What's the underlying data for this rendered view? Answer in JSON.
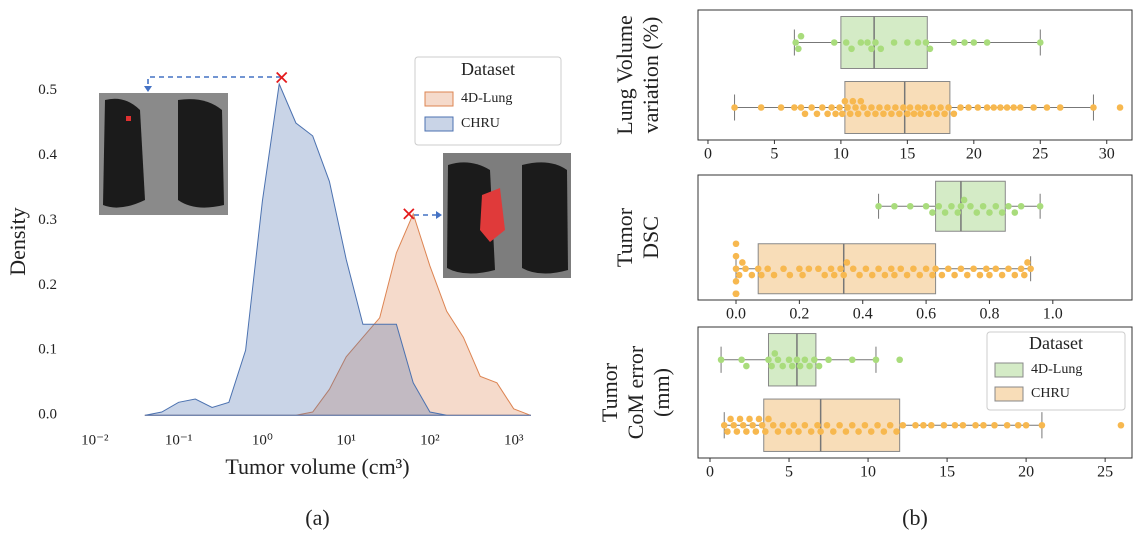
{
  "chart_data": [
    {
      "type": "area",
      "xlabel": "Tumor volume (cm³)",
      "ylabel": "Density",
      "caption": "(a)",
      "xscale": "log",
      "xlim": [
        0.0044,
        4700
      ],
      "ylim": [
        -0.015,
        0.55
      ],
      "xticks": [
        {
          "value": 0.01,
          "label": "10⁻²"
        },
        {
          "value": 0.1,
          "label": "10⁻¹"
        },
        {
          "value": 1,
          "label": "10⁰"
        },
        {
          "value": 10,
          "label": "10¹"
        },
        {
          "value": 100,
          "label": "10²"
        },
        {
          "value": 1000,
          "label": "10³"
        }
      ],
      "yticks": [
        {
          "value": 0,
          "label": "0.0"
        },
        0.1,
        0.2,
        0.3,
        0.4,
        0.5
      ],
      "legend": "upper right",
      "legend_title": "Dataset",
      "x": [
        0.04,
        0.063,
        0.1,
        0.158,
        0.251,
        0.398,
        0.631,
        1,
        1.585,
        2.512,
        3.981,
        6.31,
        10,
        15.85,
        25.12,
        39.81,
        63.1,
        100,
        158.5,
        251.2,
        398.1,
        631,
        1000,
        1585
      ],
      "series": [
        {
          "name": "4D-Lung",
          "color": "#dd8452",
          "values": [
            0,
            0,
            0,
            0,
            0,
            0,
            0,
            0,
            0,
            0,
            0.005,
            0.04,
            0.09,
            0.12,
            0.15,
            0.25,
            0.31,
            0.23,
            0.16,
            0.12,
            0.06,
            0.05,
            0.01,
            0
          ]
        },
        {
          "name": "CHRU",
          "color": "#4c72b0",
          "values": [
            0,
            0.005,
            0.02,
            0.025,
            0.012,
            0.02,
            0.1,
            0.33,
            0.51,
            0.45,
            0.43,
            0.36,
            0.24,
            0.14,
            0.14,
            0.14,
            0.05,
            0.005,
            0,
            0,
            0,
            0,
            0,
            0
          ]
        }
      ],
      "markers": {
        "color": "#e41a1c",
        "x": [
          1.7,
          56
        ],
        "y": [
          0.52,
          0.31
        ]
      }
    },
    {
      "type": "box",
      "ylabel": [
        "Lung Volume",
        "variation (%)"
      ],
      "xlim": [
        -0.75,
        31.9
      ],
      "xticks": [
        0,
        5,
        10,
        15,
        20,
        25,
        30
      ],
      "series": [
        {
          "color": "#d4ebc6",
          "point_color": "#a9dc7c",
          "box": {
            "whislo": 6.5,
            "q1": 10,
            "med": 12.5,
            "q3": 16.5,
            "whishi": 25
          },
          "points": [
            6.6,
            6.8,
            7,
            9.5,
            10.4,
            10.8,
            11.5,
            12,
            12.3,
            12.6,
            13,
            14,
            15,
            15.8,
            16.4,
            16.7,
            18.5,
            19.3,
            20,
            21,
            25
          ]
        },
        {
          "color": "#f8ddb8",
          "point_color": "#f7b84f",
          "box": {
            "whislo": 2,
            "q1": 10.3,
            "med": 14.8,
            "q3": 18.2,
            "whishi": 29
          },
          "points": [
            2,
            4,
            5.5,
            6.5,
            7,
            7.3,
            7.8,
            8.2,
            8.6,
            9,
            9.3,
            9.6,
            9.9,
            10.1,
            10.3,
            10.5,
            10.7,
            10.9,
            11.1,
            11.3,
            11.5,
            11.7,
            12,
            12.3,
            12.6,
            12.9,
            13.2,
            13.5,
            13.8,
            14.1,
            14.4,
            14.7,
            15,
            15.2,
            15.5,
            15.8,
            16,
            16.3,
            16.6,
            16.9,
            17.2,
            17.5,
            17.8,
            18.1,
            18.5,
            19,
            19.6,
            20.3,
            21,
            21.5,
            22,
            22.5,
            23,
            23.5,
            24.5,
            25.5,
            26.5,
            29,
            31
          ]
        }
      ]
    },
    {
      "type": "box",
      "ylabel": [
        "Tumor",
        "DSC"
      ],
      "xlim": [
        -0.12,
        1.25
      ],
      "xticks": [
        {
          "value": 0,
          "label": "0.0"
        },
        0.2,
        0.4,
        0.6,
        0.8,
        {
          "value": 1,
          "label": "1.0"
        }
      ],
      "series": [
        {
          "color": "#d4ebc6",
          "point_color": "#a9dc7c",
          "box": {
            "whislo": 0.45,
            "q1": 0.63,
            "med": 0.71,
            "q3": 0.85,
            "whishi": 0.96
          },
          "points": [
            0.45,
            0.5,
            0.55,
            0.6,
            0.62,
            0.64,
            0.66,
            0.68,
            0.7,
            0.71,
            0.72,
            0.74,
            0.76,
            0.78,
            0.8,
            0.82,
            0.84,
            0.86,
            0.88,
            0.9,
            0.96
          ]
        },
        {
          "color": "#f8ddb8",
          "point_color": "#f7b84f",
          "box": {
            "whislo": 0,
            "q1": 0.07,
            "med": 0.34,
            "q3": 0.63,
            "whishi": 0.93
          },
          "points": [
            0,
            0,
            0,
            0,
            0,
            0,
            0,
            0,
            0.01,
            0.02,
            0.03,
            0.05,
            0.07,
            0.08,
            0.1,
            0.12,
            0.15,
            0.17,
            0.2,
            0.21,
            0.23,
            0.26,
            0.28,
            0.3,
            0.31,
            0.33,
            0.34,
            0.35,
            0.37,
            0.39,
            0.41,
            0.43,
            0.45,
            0.47,
            0.49,
            0.5,
            0.52,
            0.54,
            0.56,
            0.58,
            0.6,
            0.62,
            0.63,
            0.65,
            0.67,
            0.69,
            0.71,
            0.73,
            0.75,
            0.77,
            0.79,
            0.8,
            0.82,
            0.84,
            0.86,
            0.88,
            0.9,
            0.91,
            0.92,
            0.93
          ]
        }
      ]
    },
    {
      "type": "box",
      "ylabel": [
        "Tumor",
        "CoM error",
        "(mm)"
      ],
      "caption": "(b)",
      "xlim": [
        -0.76,
        26.7
      ],
      "xticks": [
        0,
        5,
        10,
        15,
        20,
        25
      ],
      "legend": "upper right",
      "legend_title": "Dataset",
      "series": [
        {
          "name": "4D-Lung",
          "color": "#d4ebc6",
          "point_color": "#a9dc7c",
          "box": {
            "whislo": 0.7,
            "q1": 3.7,
            "med": 5.5,
            "q3": 6.7,
            "whishi": 10.5
          },
          "points": [
            0.7,
            2,
            2.3,
            3.7,
            3.9,
            4.1,
            4.3,
            4.6,
            5,
            5.2,
            5.5,
            5.7,
            6,
            6.3,
            6.6,
            6.9,
            7.5,
            9,
            10.5,
            12
          ]
        },
        {
          "name": "CHRU",
          "color": "#f8ddb8",
          "point_color": "#f7b84f",
          "box": {
            "whislo": 0.9,
            "q1": 3.4,
            "med": 7,
            "q3": 12,
            "whishi": 21
          },
          "points": [
            0.9,
            1.1,
            1.3,
            1.5,
            1.7,
            1.9,
            2.1,
            2.3,
            2.5,
            2.7,
            2.9,
            3.1,
            3.3,
            3.5,
            3.7,
            4,
            4.3,
            4.6,
            5,
            5.3,
            5.6,
            6,
            6.4,
            6.8,
            7,
            7.4,
            7.8,
            8.2,
            8.6,
            9,
            9.4,
            9.8,
            10.2,
            10.6,
            11,
            11.4,
            11.8,
            12.2,
            13,
            13.5,
            14,
            14.8,
            15.5,
            16,
            16.8,
            17.3,
            18,
            18.8,
            19.5,
            20,
            21,
            26
          ]
        }
      ]
    }
  ]
}
